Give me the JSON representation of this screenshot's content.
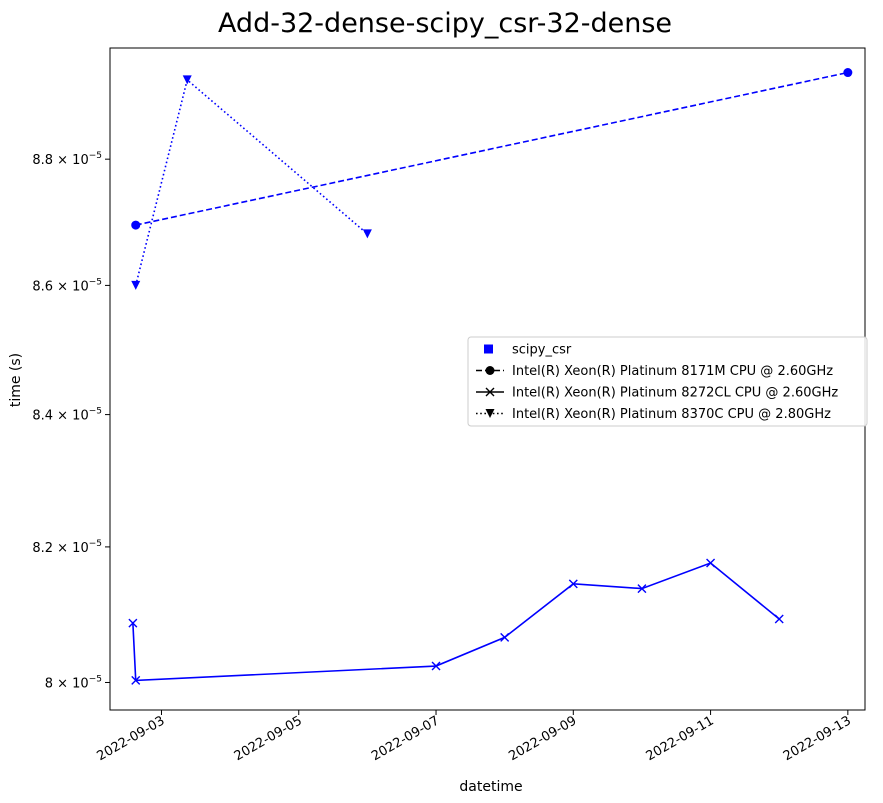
{
  "chart_data": {
    "type": "line",
    "title": "Add-32-dense-scipy_csr-32-dense",
    "xlabel": "datetime",
    "ylabel": "time (s)",
    "yscale": "log",
    "xlim": [
      "2022-09-02T06:00",
      "2022-09-13T06:00"
    ],
    "ylim": [
      7.96e-05,
      8.98e-05
    ],
    "x_ticks": [
      {
        "value": "2022-09-03",
        "label": "2022-09-03"
      },
      {
        "value": "2022-09-05",
        "label": "2022-09-05"
      },
      {
        "value": "2022-09-07",
        "label": "2022-09-07"
      },
      {
        "value": "2022-09-09",
        "label": "2022-09-09"
      },
      {
        "value": "2022-09-11",
        "label": "2022-09-11"
      },
      {
        "value": "2022-09-13",
        "label": "2022-09-13"
      }
    ],
    "y_ticks": [
      {
        "value": 8e-05,
        "mant": "8",
        "exp": "−5"
      },
      {
        "value": 8.2e-05,
        "mant": "8.2",
        "exp": "−5"
      },
      {
        "value": 8.4e-05,
        "mant": "8.4",
        "exp": "−5"
      },
      {
        "value": 8.6e-05,
        "mant": "8.6",
        "exp": "−5"
      },
      {
        "value": 8.8e-05,
        "mant": "8.8",
        "exp": "−5"
      }
    ],
    "grid": false,
    "legend_position": "center-right",
    "color": "#0000ff",
    "legend": [
      {
        "label": "scipy_csr",
        "kind": "color",
        "marker": "square"
      },
      {
        "label": "Intel(R) Xeon(R) Platinum 8171M CPU @ 2.60GHz",
        "kind": "series",
        "marker": "circle",
        "dash": "dashed"
      },
      {
        "label": "Intel(R) Xeon(R) Platinum 8272CL CPU @ 2.60GHz",
        "kind": "series",
        "marker": "x",
        "dash": "solid"
      },
      {
        "label": "Intel(R) Xeon(R) Platinum 8370C CPU @ 2.80GHz",
        "kind": "series",
        "marker": "triangle-down",
        "dash": "dotted"
      }
    ],
    "series": [
      {
        "name": "Intel(R) Xeon(R) Platinum 8171M CPU @ 2.60GHz",
        "marker": "circle",
        "dash": "dashed",
        "points": [
          {
            "x": "2022-09-02T15:00",
            "y": 8.695e-05
          },
          {
            "x": "2022-09-13T00:00",
            "y": 8.94e-05
          }
        ]
      },
      {
        "name": "Intel(R) Xeon(R) Platinum 8272CL CPU @ 2.60GHz",
        "marker": "x",
        "dash": "solid",
        "points": [
          {
            "x": "2022-09-02T14:00",
            "y": 8.087e-05
          },
          {
            "x": "2022-09-02T15:00",
            "y": 8.003e-05
          },
          {
            "x": "2022-09-07T00:00",
            "y": 8.024e-05
          },
          {
            "x": "2022-09-08T00:00",
            "y": 8.066e-05
          },
          {
            "x": "2022-09-09T00:00",
            "y": 8.145e-05
          },
          {
            "x": "2022-09-10T00:00",
            "y": 8.138e-05
          },
          {
            "x": "2022-09-11T00:00",
            "y": 8.176e-05
          },
          {
            "x": "2022-09-12T00:00",
            "y": 8.093e-05
          }
        ]
      },
      {
        "name": "Intel(R) Xeon(R) Platinum 8370C CPU @ 2.80GHz",
        "marker": "triangle-down",
        "dash": "dotted",
        "points": [
          {
            "x": "2022-09-02T15:00",
            "y": 8.6e-05
          },
          {
            "x": "2022-09-03T09:00",
            "y": 8.928e-05
          },
          {
            "x": "2022-09-06T00:00",
            "y": 8.681e-05
          }
        ]
      }
    ]
  }
}
